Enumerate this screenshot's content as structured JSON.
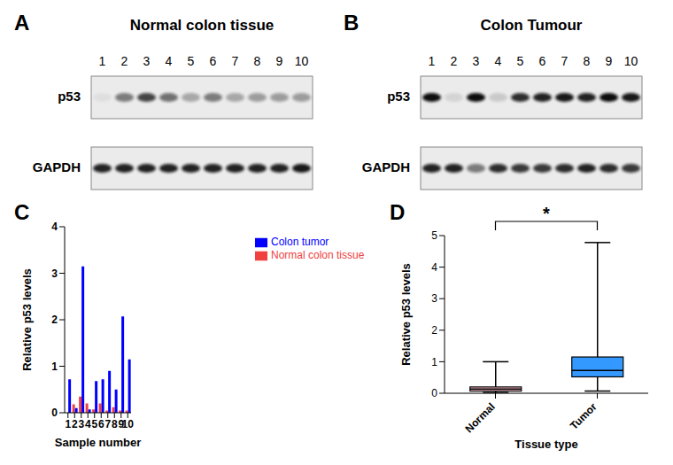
{
  "blots": [
    {
      "panel": "A",
      "title": "Normal colon tissue",
      "lanes": [
        "1",
        "2",
        "3",
        "4",
        "5",
        "6",
        "7",
        "8",
        "9",
        "10"
      ],
      "rows": [
        {
          "label": "p53",
          "intensity": [
            0.05,
            0.5,
            0.75,
            0.55,
            0.3,
            0.5,
            0.3,
            0.35,
            0.35,
            0.35
          ]
        },
        {
          "label": "GAPDH",
          "intensity": [
            0.9,
            0.9,
            0.9,
            0.9,
            0.9,
            0.9,
            0.9,
            0.9,
            0.9,
            0.95
          ]
        }
      ]
    },
    {
      "panel": "B",
      "title": "Colon Tumour",
      "lanes": [
        "1",
        "2",
        "3",
        "4",
        "5",
        "6",
        "7",
        "8",
        "9",
        "10"
      ],
      "rows": [
        {
          "label": "p53",
          "intensity": [
            1.0,
            0.1,
            1.0,
            0.15,
            0.85,
            0.9,
            0.95,
            0.9,
            1.0,
            0.95
          ]
        },
        {
          "label": "GAPDH",
          "intensity": [
            0.9,
            0.9,
            0.5,
            0.85,
            0.8,
            0.8,
            0.85,
            0.9,
            0.85,
            0.8
          ]
        }
      ]
    }
  ],
  "chart_data": [
    {
      "panel": "C",
      "type": "bar",
      "categories": [
        "1",
        "2",
        "3",
        "4",
        "5",
        "6",
        "7",
        "8",
        "9",
        "10"
      ],
      "series": [
        {
          "name": "Normal colon tissue",
          "color": "#f04040",
          "values": [
            0,
            0.18,
            0.35,
            0.2,
            0.07,
            0.2,
            0.05,
            0.12,
            0.05,
            0.05
          ]
        },
        {
          "name": "Colon tumor",
          "color": "#0000ff",
          "values": [
            0.72,
            0.1,
            3.15,
            0.07,
            0.68,
            0.72,
            0.9,
            0.5,
            2.07,
            1.15
          ]
        }
      ],
      "x_label": "Sample number",
      "y_label": "Relative p53 levels",
      "ylim": [
        0,
        4
      ],
      "yticks": [
        0,
        1,
        2,
        3,
        4
      ],
      "legend": "right"
    },
    {
      "panel": "D",
      "type": "box",
      "categories": [
        "Normal",
        "Tumor"
      ],
      "boxes": [
        {
          "min": 0.02,
          "q1": 0.07,
          "median": 0.13,
          "q3": 0.2,
          "max": 1.0
        },
        {
          "min": 0.07,
          "q1": 0.52,
          "median": 0.72,
          "q3": 1.15,
          "max": 4.78
        }
      ],
      "colors": [
        "#f4b6c2",
        "#3399ff"
      ],
      "x_label": "Tissue type",
      "y_label": "Relative p53 levels",
      "ylim": [
        0,
        5
      ],
      "yticks": [
        0,
        1,
        2,
        3,
        4,
        5
      ],
      "annotation": "*"
    }
  ]
}
